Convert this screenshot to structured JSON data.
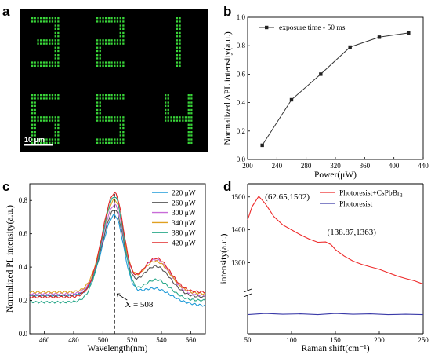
{
  "panel_labels": {
    "a": "a",
    "b": "b",
    "c": "c",
    "d": "d"
  },
  "micrograph": {
    "scale_bar_label": "10 μm",
    "background": "#000000",
    "dot_color": "#39d639",
    "digits_top": [
      "3",
      "2",
      "1"
    ],
    "digits_bottom": [
      "6",
      "5",
      "4"
    ]
  },
  "chart_data": [
    {
      "panel": "b",
      "type": "line",
      "xlabel": "Power(μW)",
      "ylabel": "Normalized ΔPL intensity(a.u.)",
      "xlim": [
        200,
        440
      ],
      "ylim": [
        0.0,
        1.0
      ],
      "xticks": [
        "200",
        "240",
        "280",
        "320",
        "360",
        "400",
        "440"
      ],
      "yticks": [
        "0.0",
        "0.2",
        "0.4",
        "0.6",
        "0.8",
        "1.0"
      ],
      "legend": "top-left",
      "series": [
        {
          "name": "exposure time - 50 ms",
          "color": "#333333",
          "marker": "square",
          "x": [
            220,
            260,
            300,
            340,
            380,
            420
          ],
          "y": [
            0.1,
            0.42,
            0.6,
            0.79,
            0.86,
            0.89
          ]
        }
      ]
    },
    {
      "panel": "c",
      "type": "line",
      "xlabel": "Wavelength(nm)",
      "ylabel": "Normalized PL intensity(a.u.)",
      "xlim": [
        450,
        570
      ],
      "ylim": [
        0.0,
        0.9
      ],
      "xticks": [
        "460",
        "480",
        "500",
        "520",
        "540",
        "560"
      ],
      "yticks": [
        "0.0",
        "0.2",
        "0.4",
        "0.6",
        "0.8"
      ],
      "legend": "top-right",
      "annotation": "X = 508",
      "vline_x": 508,
      "series": [
        {
          "name": "220 μW",
          "color": "#1f9bd8",
          "peak": 0.71,
          "base_left": 0.23,
          "shoulder": 0.22,
          "tail": 0.17
        },
        {
          "name": "260 μW",
          "color": "#555555",
          "peak": 0.74,
          "base_left": 0.23,
          "shoulder": 0.33,
          "tail": 0.22
        },
        {
          "name": "300 μW",
          "color": "#c86bd8",
          "peak": 0.77,
          "base_left": 0.24,
          "shoulder": 0.36,
          "tail": 0.23
        },
        {
          "name": "340 μW",
          "color": "#e0a020",
          "peak": 0.8,
          "base_left": 0.25,
          "shoulder": 0.34,
          "tail": 0.24
        },
        {
          "name": "380 μW",
          "color": "#2aa88a",
          "peak": 0.82,
          "base_left": 0.19,
          "shoulder": 0.28,
          "tail": 0.2
        },
        {
          "name": "420 μW",
          "color": "#e02828",
          "peak": 0.84,
          "base_left": 0.22,
          "shoulder": 0.37,
          "tail": 0.25
        }
      ]
    },
    {
      "panel": "d",
      "type": "line",
      "xlabel": "Raman shift(cm⁻¹)",
      "ylabel": "intensity(a.u.)",
      "xlim": [
        50,
        250
      ],
      "ylim_upper": [
        1220,
        1540
      ],
      "ylim_lower": [
        0,
        100
      ],
      "axis_break": true,
      "xticks": [
        "50",
        "100",
        "150",
        "200",
        "250"
      ],
      "yticks_upper": [
        "1300",
        "1400",
        "1500"
      ],
      "legend": "top-right",
      "annotations": [
        {
          "text": "(62.65,1502)",
          "x": 62.65,
          "y": 1502
        },
        {
          "text": "(138.87,1363)",
          "x": 138.87,
          "y": 1363
        }
      ],
      "series": [
        {
          "name": "Photoresist+CsPbBr",
          "name_sub": "3",
          "color": "#ee2a2a",
          "x": [
            50,
            55,
            62.65,
            70,
            80,
            90,
            100,
            110,
            120,
            130,
            138.87,
            145,
            150,
            160,
            170,
            180,
            190,
            200,
            210,
            220,
            230,
            240,
            250
          ],
          "y": [
            1430,
            1470,
            1502,
            1480,
            1440,
            1415,
            1400,
            1385,
            1372,
            1362,
            1363,
            1355,
            1340,
            1320,
            1305,
            1295,
            1287,
            1280,
            1270,
            1260,
            1252,
            1245,
            1235
          ]
        },
        {
          "name": "Photoresist",
          "color": "#3a3aa8",
          "x": [
            50,
            70,
            90,
            110,
            130,
            150,
            170,
            190,
            210,
            230,
            250
          ],
          "y": [
            52,
            55,
            53,
            54,
            52,
            55,
            53,
            54,
            52,
            53,
            52
          ]
        }
      ]
    }
  ]
}
